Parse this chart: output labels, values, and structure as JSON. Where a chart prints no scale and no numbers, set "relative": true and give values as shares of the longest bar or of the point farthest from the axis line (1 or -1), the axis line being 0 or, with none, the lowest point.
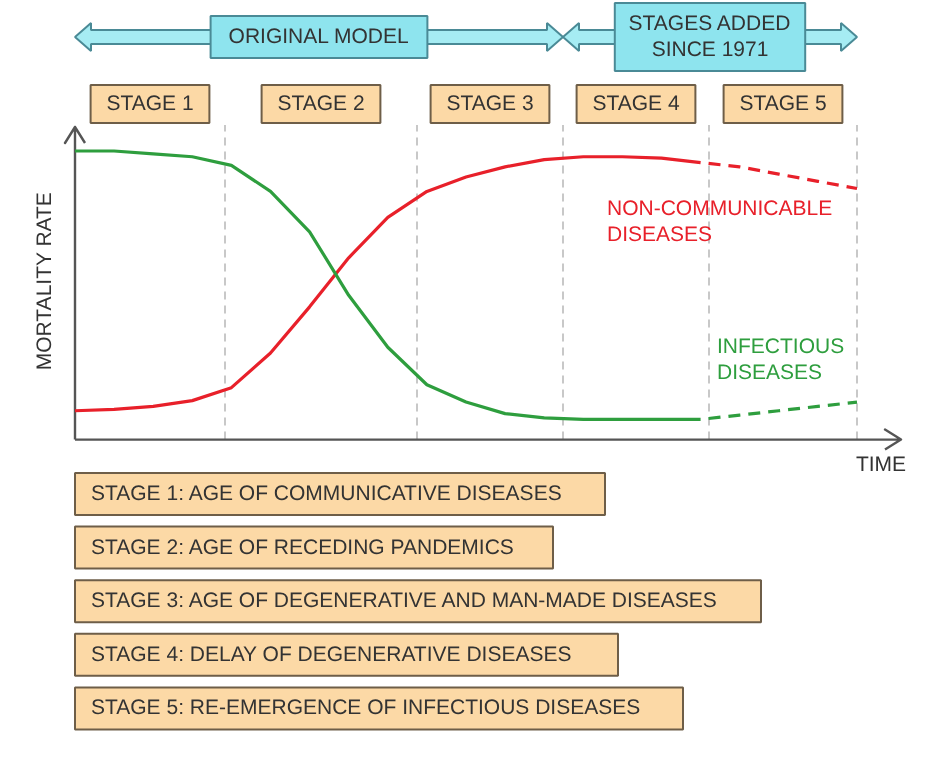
{
  "chart_data": {
    "type": "line",
    "relative": true,
    "xlabel": "TIME",
    "ylabel": "MORTALITY RATE",
    "categories": [
      null,
      null,
      null,
      null,
      null,
      null,
      null,
      null,
      null,
      null,
      null,
      null,
      null,
      null,
      null,
      null,
      null,
      null,
      null,
      null,
      null
    ],
    "series": [
      {
        "name": "NON-COMMUNICABLE DISEASES",
        "color": "#e8202a",
        "values": [
          0.1,
          0.105,
          0.115,
          0.135,
          0.18,
          0.3,
          0.46,
          0.63,
          0.77,
          0.86,
          0.91,
          0.945,
          0.97,
          0.98,
          0.98,
          0.975,
          0.96,
          null,
          null,
          null,
          null
        ]
      },
      {
        "color": "#e8202a",
        "line_style": "dashed",
        "values": [
          null,
          null,
          null,
          null,
          null,
          null,
          null,
          null,
          null,
          null,
          null,
          null,
          null,
          null,
          null,
          null,
          0.96,
          0.945,
          0.92,
          0.895,
          0.87
        ]
      },
      {
        "name": "INFECTIOUS DISEASES",
        "color": "#2e9e3e",
        "values": [
          1.0,
          1.0,
          0.99,
          0.98,
          0.95,
          0.86,
          0.72,
          0.5,
          0.32,
          0.19,
          0.13,
          0.09,
          0.075,
          0.07,
          0.07,
          0.07,
          0.07,
          null,
          null,
          null,
          null
        ]
      },
      {
        "color": "#2e9e3e",
        "line_style": "dashed",
        "values": [
          null,
          null,
          null,
          null,
          null,
          null,
          null,
          null,
          null,
          null,
          null,
          null,
          null,
          null,
          null,
          null,
          0.07,
          0.085,
          0.1,
          0.115,
          0.13
        ]
      }
    ],
    "annotations": [
      "ORIGINAL MODEL",
      "STAGES ADDED SINCE 1971",
      "STAGE 1",
      "STAGE 2",
      "STAGE 3",
      "STAGE 4",
      "STAGE 5",
      "STAGE 1: AGE OF COMMUNICATIVE DISEASES",
      "STAGE 2: AGE OF RECEDING PANDEMICS",
      "STAGE 3: AGE OF DEGENERATIVE AND MAN-MADE DISEASES",
      "STAGE 4: DELAY OF DEGENERATIVE DISEASES",
      "STAGE 5: RE-EMERGENCE OF INFECTIOUS DISEASES"
    ]
  }
}
